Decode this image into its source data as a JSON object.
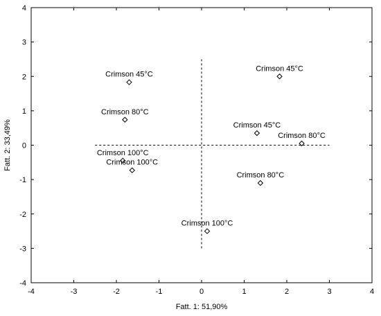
{
  "chart_data": {
    "type": "scatter",
    "xlabel": "Fatt.  1: 51,90%",
    "ylabel": "Fatt.  2: 33,49%",
    "xlim": [
      -4,
      4
    ],
    "ylim": [
      -4,
      4
    ],
    "xticks": [
      -4,
      -3,
      -2,
      -1,
      0,
      1,
      2,
      3,
      4
    ],
    "yticks": [
      -4,
      -3,
      -2,
      -1,
      0,
      1,
      2,
      3,
      4
    ],
    "marker": "diamond",
    "axes_lines": {
      "x": [
        -2.5,
        3.0
      ],
      "y": [
        -3.0,
        2.5
      ],
      "style": "dashed"
    },
    "points": [
      {
        "label": "Crimson 45°C",
        "x": -1.7,
        "y": 1.83
      },
      {
        "label": "Crimson 45°C",
        "x": 1.83,
        "y": 2.0
      },
      {
        "label": "Crimson 80°C",
        "x": -1.8,
        "y": 0.74
      },
      {
        "label": "Crimson 45°C",
        "x": 1.3,
        "y": 0.35
      },
      {
        "label": "Crimson 80°C",
        "x": 2.35,
        "y": 0.05
      },
      {
        "label": "Crimson 100°C",
        "x": -1.85,
        "y": -0.45
      },
      {
        "label": "Crimson 100°C",
        "x": -1.63,
        "y": -0.73
      },
      {
        "label": "Crimson 80°C",
        "x": 1.38,
        "y": -1.1
      },
      {
        "label": "Crimson 100°C",
        "x": 0.13,
        "y": -2.5
      }
    ]
  }
}
